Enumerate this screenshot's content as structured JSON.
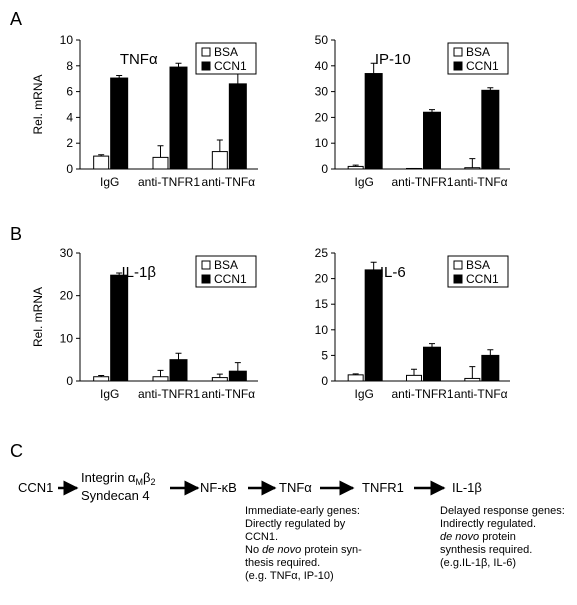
{
  "panels": [
    "A",
    "B",
    "C"
  ],
  "chart_data": [
    {
      "type": "bar",
      "title": "TNFα",
      "ylabel": "Rel. mRNA",
      "categories": [
        "IgG",
        "anti-TNFR1",
        "anti-TNFα"
      ],
      "series": [
        {
          "name": "BSA",
          "color": "#ffffff",
          "values": [
            1.0,
            0.9,
            1.35
          ],
          "errors": [
            0.1,
            0.9,
            0.9
          ]
        },
        {
          "name": "CCN1",
          "color": "#000000",
          "values": [
            7.05,
            7.9,
            6.6
          ],
          "errors": [
            0.2,
            0.3,
            0.8
          ]
        }
      ],
      "ylim": [
        0,
        10
      ],
      "yticks": [
        0,
        2,
        4,
        6,
        8,
        10
      ],
      "legend": "upper right"
    },
    {
      "type": "bar",
      "title": "IP-10",
      "categories": [
        "IgG",
        "anti-TNFR1",
        "anti-TNFα"
      ],
      "series": [
        {
          "name": "BSA",
          "color": "#ffffff",
          "values": [
            1,
            0.2,
            0.5
          ],
          "errors": [
            0.5,
            0,
            3.5
          ]
        },
        {
          "name": "CCN1",
          "color": "#000000",
          "values": [
            37,
            22,
            30.5
          ],
          "errors": [
            4,
            1,
            1
          ]
        }
      ],
      "ylim": [
        0,
        50
      ],
      "yticks": [
        0,
        10,
        20,
        30,
        40,
        50
      ],
      "legend": "upper right"
    },
    {
      "type": "bar",
      "title": "IL-1β",
      "ylabel": "Rel. mRNA",
      "categories": [
        "IgG",
        "anti-TNFR1",
        "anti-TNFα"
      ],
      "series": [
        {
          "name": "BSA",
          "color": "#ffffff",
          "values": [
            1,
            1,
            0.8
          ],
          "errors": [
            0.3,
            1.5,
            0.8
          ]
        },
        {
          "name": "CCN1",
          "color": "#000000",
          "values": [
            24.8,
            5,
            2.3
          ],
          "errors": [
            0.5,
            1.5,
            2
          ]
        }
      ],
      "ylim": [
        0,
        30
      ],
      "yticks": [
        0,
        10,
        20,
        30
      ],
      "legend": "upper right"
    },
    {
      "type": "bar",
      "title": "IL-6",
      "categories": [
        "IgG",
        "anti-TNFR1",
        "anti-TNFα"
      ],
      "series": [
        {
          "name": "BSA",
          "color": "#ffffff",
          "values": [
            1.2,
            1.1,
            0.5
          ],
          "errors": [
            0.2,
            1.2,
            2.3
          ]
        },
        {
          "name": "CCN1",
          "color": "#000000",
          "values": [
            21.7,
            6.6,
            5
          ],
          "errors": [
            1.5,
            0.7,
            1.1
          ]
        }
      ],
      "ylim": [
        0,
        25
      ],
      "yticks": [
        0,
        5,
        10,
        15,
        20,
        25
      ],
      "legend": "upper right"
    }
  ],
  "diagram": {
    "nodes": [
      "CCN1",
      [
        "Integrin α",
        "M",
        "β",
        "2"
      ],
      "Syndecan 4",
      "NF-κB",
      "TNFα",
      "TNFR1",
      "IL-1β"
    ],
    "immediate": [
      "Immediate-early genes:",
      "Directly regulated by",
      "CCN1.",
      [
        "No ",
        "de novo",
        " protein syn-"
      ],
      "thesis required.",
      "(e.g. TNFα, IP-10)"
    ],
    "delayed": [
      "Delayed response genes:",
      "Indirectly regulated.",
      [
        "de novo",
        " protein"
      ],
      "synthesis required.",
      "(e.g.IL-1β, IL-6)"
    ]
  }
}
